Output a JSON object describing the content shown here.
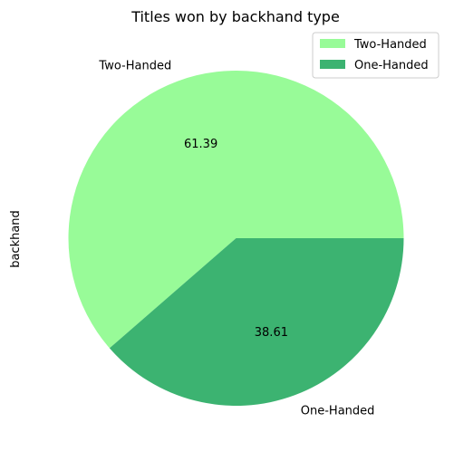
{
  "chart_data": {
    "type": "pie",
    "title": "Titles won by backhand type",
    "ylabel": "backhand",
    "categories": [
      "Two-Handed",
      "One-Handed"
    ],
    "values": [
      61.39,
      38.61
    ],
    "value_labels": [
      "61.39",
      "38.61"
    ],
    "colors": [
      "#98fb98",
      "#3cb371"
    ],
    "start_angle_deg": 0,
    "direction": "counterclockwise",
    "legend": {
      "placement": "top-right",
      "entries": [
        "Two-Handed",
        "One-Handed"
      ]
    }
  }
}
